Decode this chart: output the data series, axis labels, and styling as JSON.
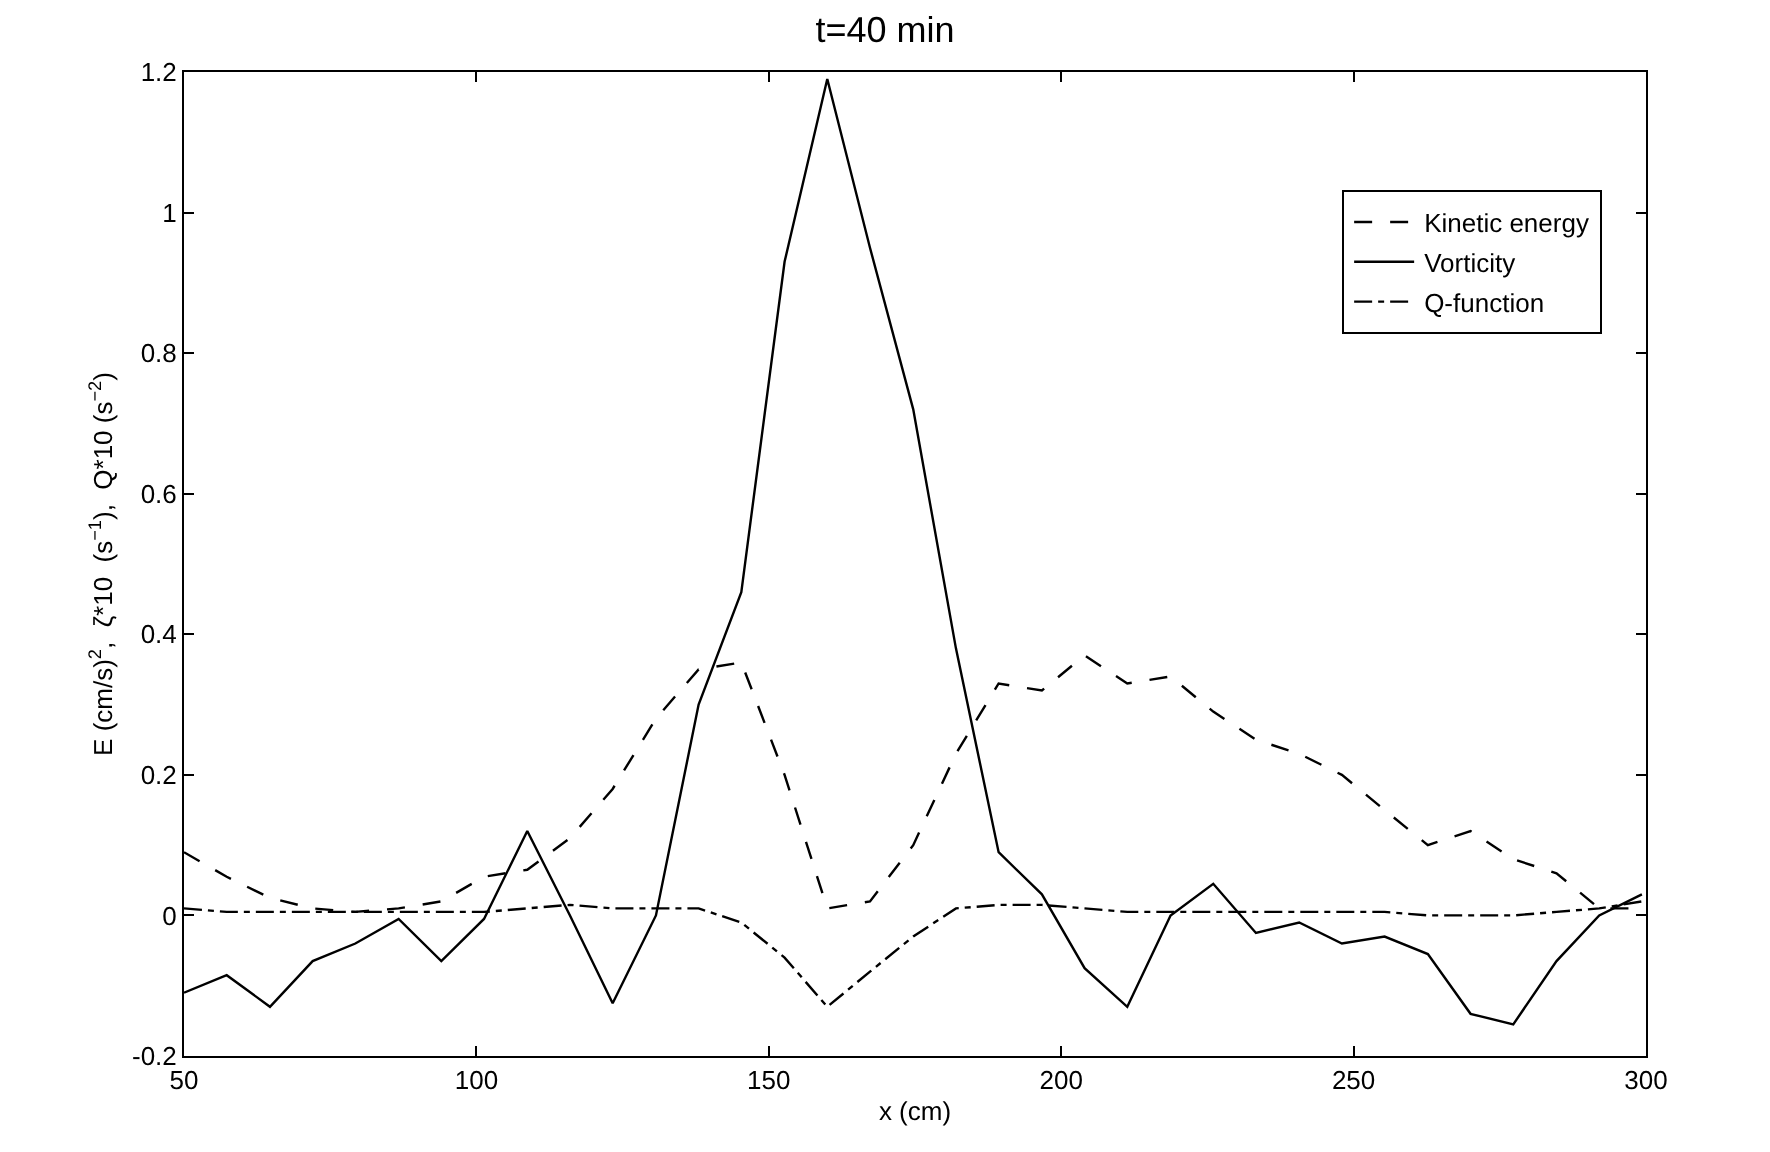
{
  "chart_data": {
    "type": "line",
    "title": "t=40 min",
    "xlabel": "x (cm)",
    "ylabel": "E (cm/s)$^{2}$,  ζ*10  (s$^{−1}$),  Q*10 (s$^{−2}$)",
    "x": [
      50,
      57.3,
      64.7,
      72,
      79.3,
      86.7,
      94,
      101.3,
      108.7,
      116,
      123.3,
      130.7,
      138,
      145.3,
      152.7,
      160,
      167.3,
      174.7,
      182,
      189.3,
      196.7,
      204,
      211.3,
      218.7,
      226,
      233.3,
      240.7,
      248,
      255.3,
      262.7,
      270,
      277.3,
      284.7,
      292,
      299.3
    ],
    "series": [
      {
        "name": "Kinetic energy",
        "color": "#000000",
        "line_style": "dashed",
        "values": [
          0.09,
          0.055,
          0.025,
          0.01,
          0.005,
          0.01,
          0.02,
          0.055,
          0.065,
          0.11,
          0.18,
          0.28,
          0.35,
          0.36,
          0.2,
          0.01,
          0.02,
          0.1,
          0.23,
          0.33,
          0.32,
          0.37,
          0.33,
          0.34,
          0.29,
          0.25,
          0.23,
          0.2,
          0.15,
          0.1,
          0.12,
          0.08,
          0.06,
          0.01,
          0.01
        ]
      },
      {
        "name": "Vorticity",
        "color": "#000000",
        "line_style": "solid",
        "values": [
          -0.11,
          -0.085,
          -0.13,
          -0.065,
          -0.04,
          -0.005,
          -0.065,
          -0.005,
          0.12,
          0.0,
          -0.125,
          0.0,
          0.3,
          0.46,
          0.93,
          1.19,
          0.95,
          0.72,
          0.38,
          0.09,
          0.03,
          -0.075,
          -0.13,
          0.0,
          0.045,
          -0.025,
          -0.01,
          -0.04,
          -0.03,
          -0.055,
          -0.14,
          -0.155,
          -0.065,
          0.0,
          0.03
        ]
      },
      {
        "name": "Q-function",
        "color": "#000000",
        "line_style": "dashdot",
        "values": [
          0.01,
          0.005,
          0.005,
          0.005,
          0.005,
          0.005,
          0.005,
          0.005,
          0.01,
          0.015,
          0.01,
          0.01,
          0.01,
          -0.01,
          -0.06,
          -0.13,
          -0.08,
          -0.03,
          0.01,
          0.015,
          0.015,
          0.01,
          0.005,
          0.005,
          0.005,
          0.005,
          0.005,
          0.005,
          0.005,
          0.0,
          0.0,
          0.0,
          0.005,
          0.01,
          0.02
        ]
      }
    ],
    "xlim": [
      50,
      300
    ],
    "xticks": [
      50,
      100,
      150,
      200,
      250,
      300
    ],
    "ylim": [
      -0.2,
      1.2
    ],
    "yticks": [
      -0.2,
      0,
      0.2,
      0.4,
      0.6,
      0.8,
      1,
      1.2
    ],
    "legend": "top right"
  }
}
